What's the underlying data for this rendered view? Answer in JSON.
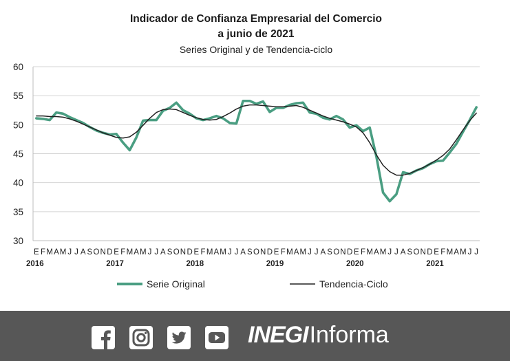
{
  "chart_data": {
    "type": "line",
    "title_lines": [
      "Indicador de Confianza Empresarial del Comercio",
      "a junio de 2021"
    ],
    "subtitle": "Series Original y de Tendencia-ciclo",
    "ylim": [
      30,
      60
    ],
    "yticks": [
      30,
      35,
      40,
      45,
      50,
      55,
      60
    ],
    "grid": true,
    "legend_position": "bottom",
    "month_labels": [
      "E",
      "F",
      "M",
      "A",
      "M",
      "J",
      "J",
      "A",
      "S",
      "O",
      "N",
      "D"
    ],
    "years": [
      "2016",
      "2017",
      "2018",
      "2019",
      "2020",
      "2021"
    ],
    "x_start": "2016-01",
    "x_end": "2021-06",
    "series": [
      {
        "name": "Serie Original",
        "color": "#4a9e82",
        "values": [
          51.1,
          51.0,
          50.8,
          52.1,
          51.9,
          51.3,
          50.8,
          50.3,
          49.6,
          49.0,
          48.6,
          48.3,
          48.4,
          46.9,
          45.6,
          47.8,
          50.7,
          50.8,
          50.8,
          52.4,
          52.9,
          53.8,
          52.5,
          51.9,
          51.1,
          50.8,
          51.1,
          51.5,
          51.1,
          50.3,
          50.2,
          54.1,
          54.1,
          53.6,
          54.0,
          52.2,
          52.9,
          52.9,
          53.4,
          53.7,
          53.8,
          52.1,
          51.9,
          51.2,
          50.9,
          51.5,
          50.9,
          49.5,
          49.9,
          48.9,
          49.5,
          44.5,
          38.3,
          36.8,
          38.0,
          41.8,
          41.5,
          42.1,
          42.5,
          43.2,
          43.7,
          43.8,
          45.2,
          46.7,
          48.8,
          50.8,
          53.0
        ]
      },
      {
        "name": "Tendencia-Ciclo",
        "color": "#222222",
        "values": [
          51.5,
          51.5,
          51.4,
          51.4,
          51.3,
          51.0,
          50.6,
          50.1,
          49.6,
          49.1,
          48.6,
          48.2,
          47.8,
          47.7,
          47.9,
          48.7,
          49.9,
          51.1,
          52.1,
          52.6,
          52.7,
          52.6,
          52.1,
          51.6,
          51.2,
          50.9,
          50.8,
          50.9,
          51.4,
          52.0,
          52.7,
          53.2,
          53.4,
          53.4,
          53.3,
          53.2,
          53.1,
          53.1,
          53.2,
          53.3,
          53.0,
          52.5,
          52.0,
          51.5,
          51.1,
          50.8,
          50.5,
          50.1,
          49.6,
          48.6,
          46.9,
          44.8,
          43.0,
          41.9,
          41.3,
          41.3,
          41.6,
          42.1,
          42.6,
          43.2,
          43.9,
          44.7,
          45.8,
          47.4,
          49.1,
          50.7,
          52.0
        ]
      }
    ]
  },
  "footer": {
    "brand_bold": "INEGI",
    "brand_light": "Informa",
    "icons": [
      "facebook-icon",
      "instagram-icon",
      "twitter-icon",
      "youtube-icon"
    ],
    "background": "#575757"
  }
}
